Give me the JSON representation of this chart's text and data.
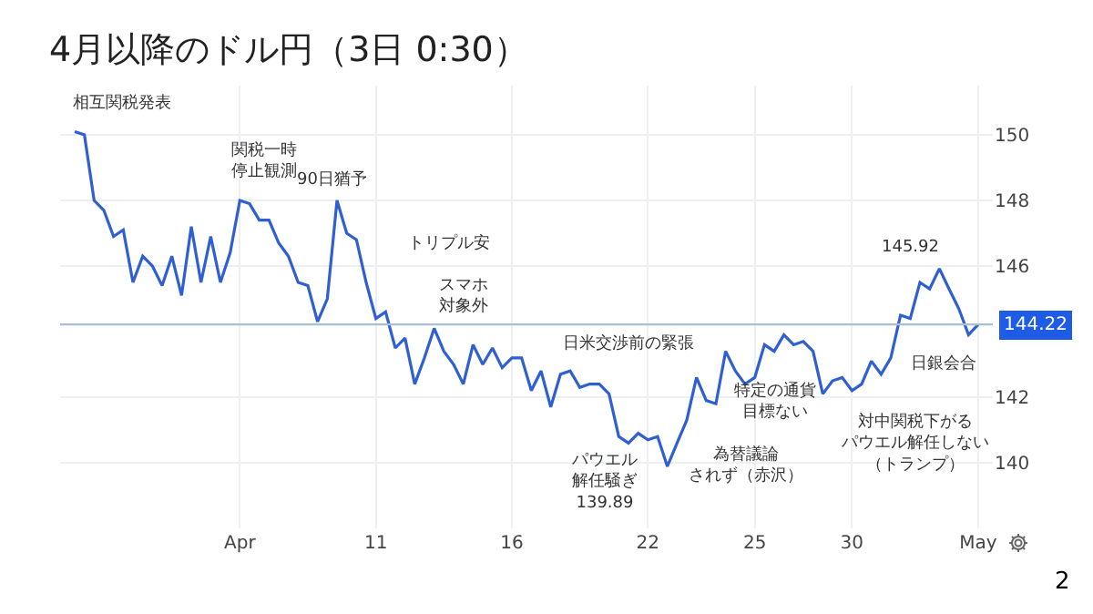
{
  "chart_data": {
    "type": "line",
    "title": "4月以降のドル円（3日 0:30）",
    "categories": [
      null,
      null,
      null,
      null,
      null,
      null,
      null,
      null,
      null,
      null,
      null,
      null,
      null,
      null,
      null,
      null,
      null,
      "Apr",
      null,
      null,
      null,
      null,
      null,
      null,
      null,
      null,
      null,
      null,
      null,
      null,
      null,
      "11",
      null,
      null,
      null,
      null,
      null,
      null,
      null,
      null,
      null,
      null,
      null,
      null,
      null,
      "16",
      null,
      null,
      null,
      null,
      null,
      null,
      null,
      null,
      null,
      null,
      null,
      null,
      null,
      "22",
      null,
      null,
      null,
      null,
      null,
      null,
      null,
      null,
      null,
      null,
      "25",
      null,
      null,
      null,
      null,
      null,
      null,
      null,
      null,
      null,
      "30",
      null,
      null,
      null,
      null,
      null,
      null,
      null,
      null,
      null,
      null,
      null,
      null,
      "May"
    ],
    "series": [
      {
        "color": "#2f5fd0",
        "values": [
          150.1,
          150.0,
          148.0,
          147.7,
          146.9,
          147.1,
          145.5,
          146.3,
          146.0,
          145.4,
          146.3,
          145.1,
          147.2,
          145.5,
          146.9,
          145.5,
          146.4,
          148.0,
          147.9,
          147.4,
          147.4,
          146.7,
          146.3,
          145.5,
          145.4,
          144.3,
          145.0,
          148.0,
          147.0,
          146.8,
          145.5,
          144.4,
          144.6,
          143.5,
          143.8,
          142.4,
          143.2,
          144.1,
          143.4,
          143.0,
          142.4,
          143.6,
          143.0,
          143.5,
          142.9,
          143.2,
          143.2,
          142.2,
          142.8,
          141.7,
          142.7,
          142.8,
          142.3,
          142.4,
          142.4,
          142.1,
          140.8,
          140.6,
          140.9,
          140.7,
          140.8,
          139.89,
          140.6,
          141.3,
          142.6,
          141.9,
          141.8,
          143.4,
          142.8,
          142.4,
          142.6,
          143.6,
          143.4,
          143.9,
          143.6,
          143.7,
          143.4,
          142.1,
          142.5,
          142.6,
          142.2,
          142.4,
          143.1,
          142.7,
          143.2,
          144.5,
          144.4,
          145.5,
          145.3,
          145.92,
          145.3,
          144.7,
          143.9,
          144.22
        ]
      }
    ],
    "ylim": [
      138,
      151.5
    ],
    "yticks": [
      140,
      142,
      146,
      148,
      150
    ],
    "grid": true,
    "ref_lines": [
      {
        "axis": "y",
        "value": 144.22,
        "label": "144.22",
        "color": "#a9bfd6"
      }
    ],
    "annotations": [
      "相互関税発表",
      "関税一時停止観測",
      "90日猶予",
      "トリプル安",
      "スマホ対象外",
      "日米交渉前の緊張",
      "パウエル解任騒ぎ139.89",
      "為替議論されず（赤沢）",
      "特定の通貨目標ない",
      "145.92",
      "日銀会合",
      "対中関税下がるパウエル解任しない（トランプ）",
      "2"
    ]
  }
}
